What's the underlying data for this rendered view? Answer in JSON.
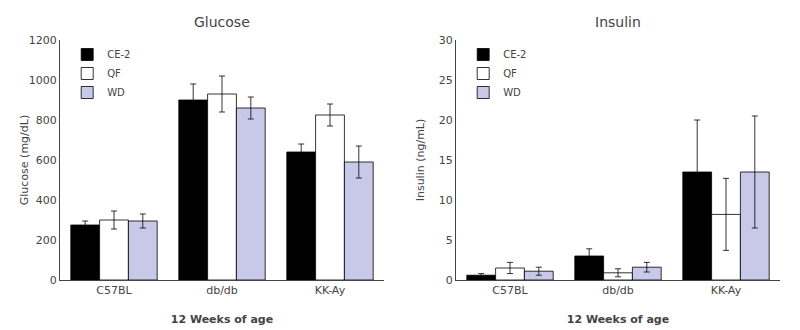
{
  "chart_data": [
    {
      "type": "bar",
      "title": "Glucose",
      "xlabel": "12 Weeks of age",
      "ylabel": "Glucose (mg/dL)",
      "categories": [
        "C57BL",
        "db/db",
        "KK-Ay"
      ],
      "series": [
        {
          "name": "CE-2",
          "color": "#000000",
          "values": [
            275,
            900,
            640
          ],
          "errors": [
            20,
            80,
            40
          ]
        },
        {
          "name": "QF",
          "color": "#ffffff",
          "values": [
            300,
            930,
            825
          ],
          "errors": [
            45,
            90,
            55
          ]
        },
        {
          "name": "WD",
          "color": "#c8c8e8",
          "values": [
            295,
            860,
            590
          ],
          "errors": [
            35,
            55,
            80
          ]
        }
      ],
      "ylim": [
        0,
        1200
      ],
      "yticks": [
        0,
        200,
        400,
        600,
        800,
        1000,
        1200
      ],
      "grid": false,
      "legend": "upper left"
    },
    {
      "type": "bar",
      "title": "Insulin",
      "xlabel": "12 Weeks of age",
      "ylabel": "Insulin (ng/mL)",
      "categories": [
        "C57BL",
        "db/db",
        "KK-Ay"
      ],
      "series": [
        {
          "name": "CE-2",
          "color": "#000000",
          "values": [
            0.6,
            3.0,
            13.5
          ],
          "errors": [
            0.2,
            0.9,
            6.5
          ]
        },
        {
          "name": "QF",
          "color": "#ffffff",
          "values": [
            1.5,
            0.9,
            8.2
          ],
          "errors": [
            0.7,
            0.5,
            4.5
          ]
        },
        {
          "name": "WD",
          "color": "#c8c8e8",
          "values": [
            1.1,
            1.6,
            13.5
          ],
          "errors": [
            0.5,
            0.6,
            7.0
          ]
        }
      ],
      "ylim": [
        0,
        30
      ],
      "yticks": [
        0,
        5,
        10,
        15,
        20,
        25,
        30
      ],
      "grid": false,
      "legend": "upper left"
    }
  ]
}
